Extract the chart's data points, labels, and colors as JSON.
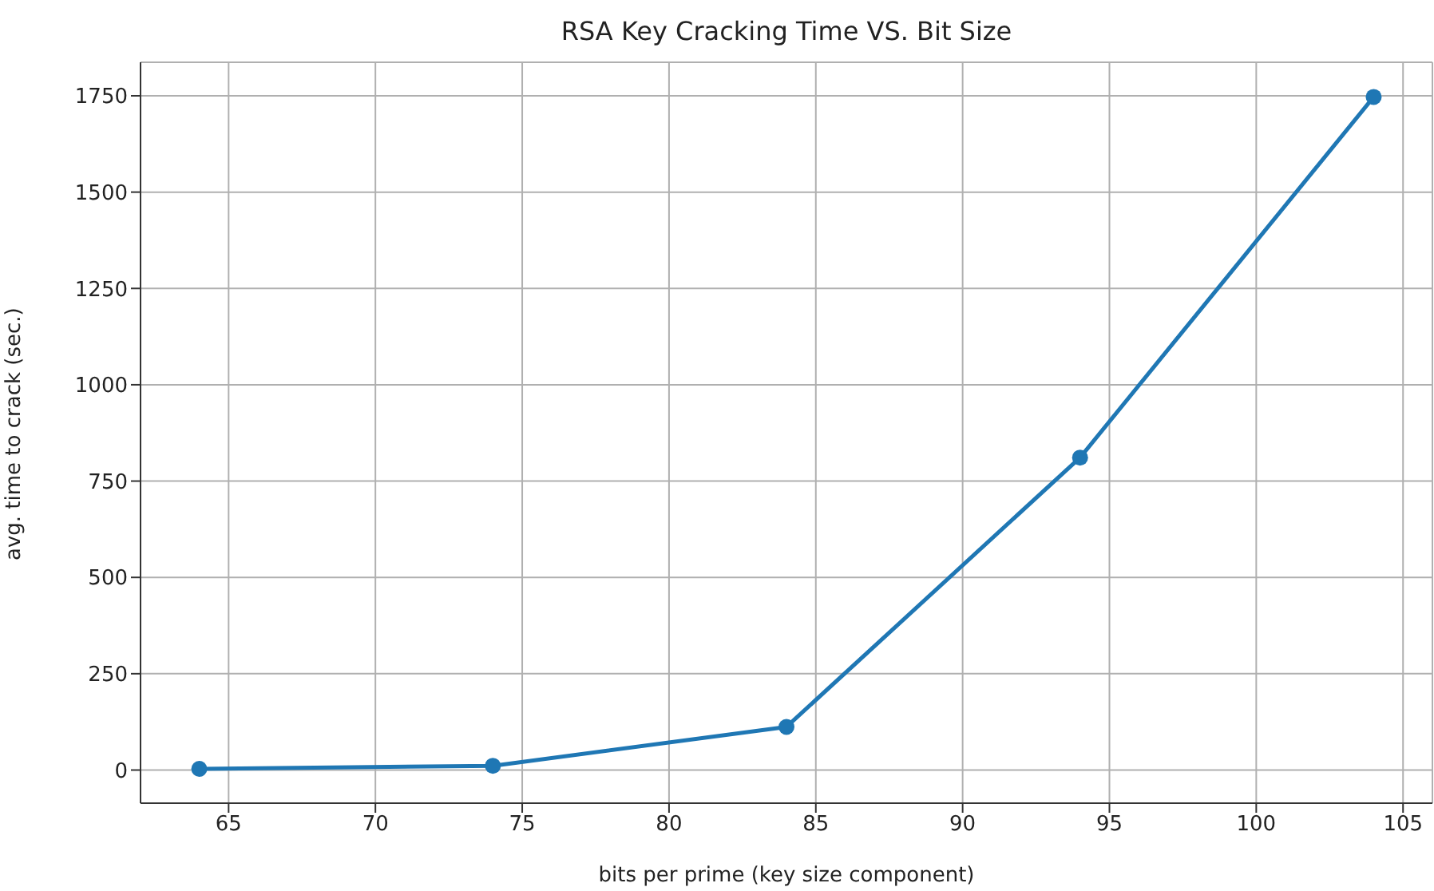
{
  "chart_data": {
    "type": "line",
    "title": "RSA Key Cracking Time VS. Bit Size",
    "xlabel": "bits per prime (key size component)",
    "ylabel": "avg. time to crack (sec.)",
    "x": [
      64,
      74,
      84,
      94,
      104
    ],
    "series": [
      {
        "color": "#1f77b4",
        "values": [
          3,
          11,
          112,
          811,
          1747
        ]
      }
    ],
    "xlim": [
      62,
      106
    ],
    "xticks": [
      65,
      70,
      75,
      80,
      85,
      90,
      95,
      100,
      105
    ],
    "ylim": [
      -86,
      1837
    ],
    "yticks": [
      0,
      250,
      500,
      750,
      1000,
      1250,
      1500,
      1750
    ],
    "grid": true,
    "marker": "circle",
    "line_style": "solid"
  }
}
